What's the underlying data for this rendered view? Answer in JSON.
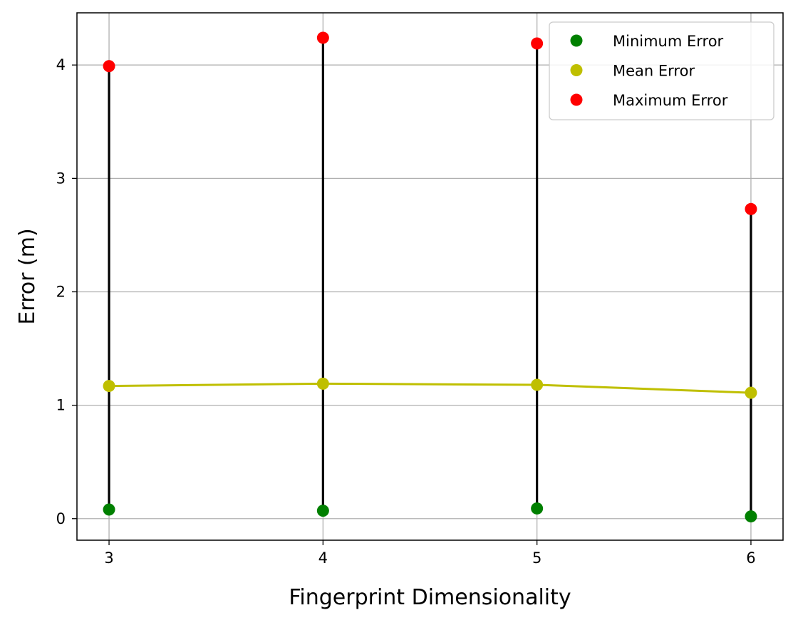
{
  "chart_data": {
    "type": "scatter",
    "title": "",
    "xlabel": "Fingerprint Dimensionality",
    "ylabel": "Error (m)",
    "x": [
      3,
      4,
      5,
      6
    ],
    "xlim": [
      2.85,
      6.15
    ],
    "ylim": [
      -0.19,
      4.46
    ],
    "xticks": [
      3,
      4,
      5,
      6
    ],
    "yticks": [
      0,
      1,
      2,
      3,
      4
    ],
    "grid": true,
    "legend_position": "top-right",
    "range_bars": {
      "color": "#000000",
      "from_series": "Minimum Error",
      "to_series": "Maximum Error"
    },
    "series": [
      {
        "name": "Minimum Error",
        "color": "#008000",
        "marker": "circle",
        "line": false,
        "values": [
          0.08,
          0.07,
          0.09,
          0.02
        ]
      },
      {
        "name": "Mean Error",
        "color": "#bfbf00",
        "marker": "circle",
        "line": true,
        "values": [
          1.17,
          1.19,
          1.18,
          1.11
        ]
      },
      {
        "name": "Maximum Error",
        "color": "#ff0000",
        "marker": "circle",
        "line": false,
        "values": [
          3.99,
          4.24,
          4.19,
          2.73
        ]
      }
    ]
  }
}
